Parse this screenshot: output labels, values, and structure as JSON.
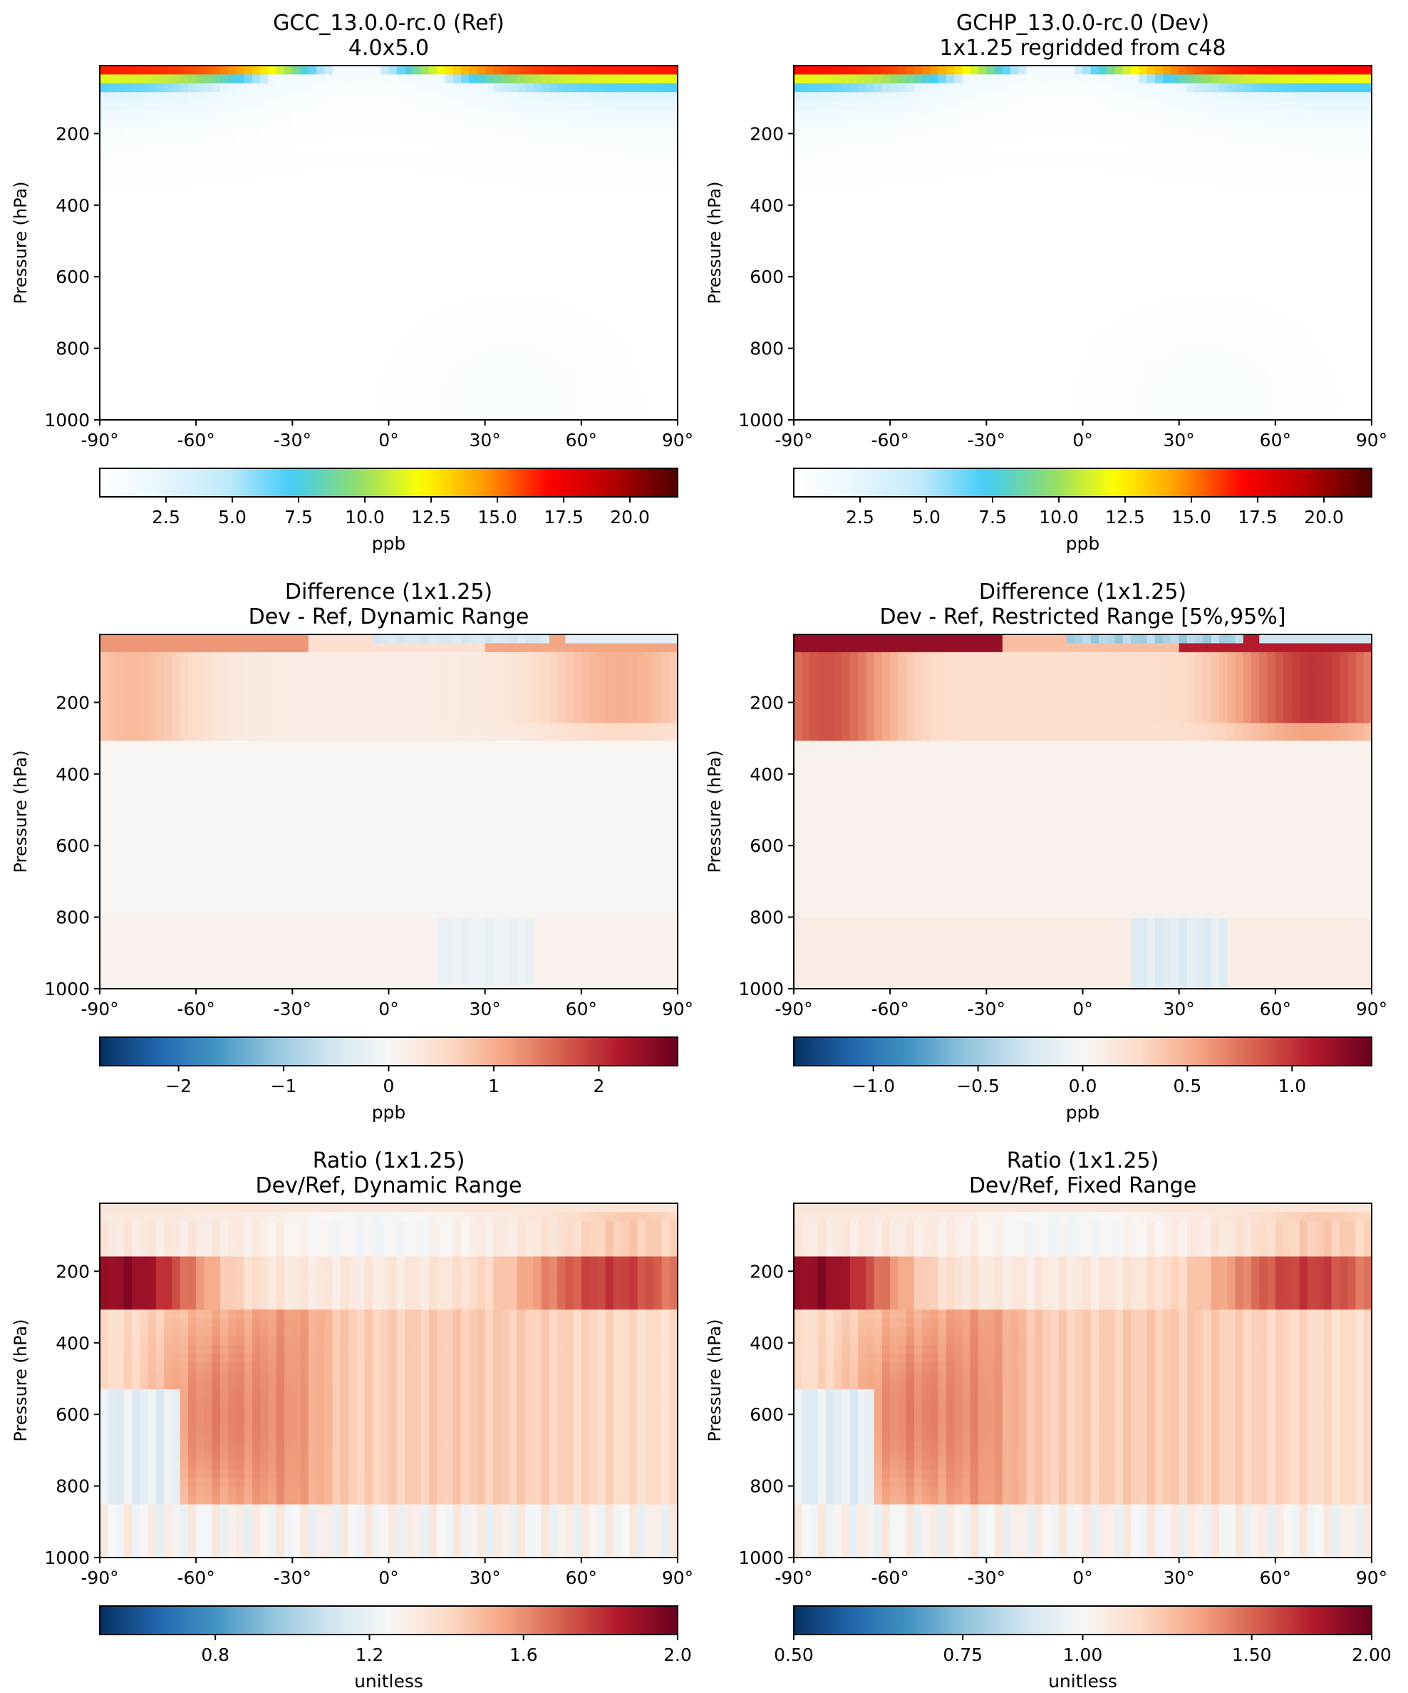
{
  "colors": {
    "sequential_stops": [
      "#ffffff",
      "#e6f6fd",
      "#bfe9fa",
      "#40ccf8",
      "#8edd6e",
      "#ffff00",
      "#ff9a00",
      "#ff0000",
      "#b40000",
      "#4d0000"
    ],
    "diverging_stops": [
      "#053061",
      "#2166ac",
      "#4393c3",
      "#92c5de",
      "#d1e5f0",
      "#f7f7f7",
      "#fddbc7",
      "#f4a582",
      "#d6604d",
      "#b2182b",
      "#67001f"
    ]
  },
  "chart_data": [
    {
      "type": "heatmap",
      "kind": "ref",
      "title": "GCC_13.0.0-rc.0 (Ref)",
      "subtitle": "4.0x5.0",
      "xlabel": "",
      "ylabel": "Pressure (hPa)",
      "xlim": [
        -90,
        90
      ],
      "ylim": [
        1000,
        10
      ],
      "y_invert": true,
      "x_ticks": [
        "-90°",
        "-60°",
        "-30°",
        "0°",
        "30°",
        "60°",
        "90°"
      ],
      "x_tick_values": [
        -90,
        -60,
        -30,
        0,
        30,
        60,
        90
      ],
      "y_ticks": [
        "200",
        "400",
        "600",
        "800",
        "1000"
      ],
      "y_tick_values": [
        200,
        400,
        600,
        800,
        1000
      ],
      "colorbar": {
        "label": "ppb",
        "cmap": "sequential",
        "range": [
          0,
          21.8
        ],
        "ticks": [
          "2.5",
          "5.0",
          "7.5",
          "10.0",
          "12.5",
          "15.0",
          "17.5",
          "20.0"
        ],
        "tick_values": [
          2.5,
          5.0,
          7.5,
          10.0,
          12.5,
          15.0,
          17.5,
          20.0
        ]
      }
    },
    {
      "type": "heatmap",
      "kind": "dev",
      "title": "GCHP_13.0.0-rc.0 (Dev)",
      "subtitle": "1x1.25 regridded from c48",
      "xlabel": "",
      "ylabel": "Pressure (hPa)",
      "xlim": [
        -90,
        90
      ],
      "ylim": [
        1000,
        10
      ],
      "y_invert": true,
      "x_ticks": [
        "-90°",
        "-60°",
        "-30°",
        "0°",
        "30°",
        "60°",
        "90°"
      ],
      "x_tick_values": [
        -90,
        -60,
        -30,
        0,
        30,
        60,
        90
      ],
      "y_ticks": [
        "200",
        "400",
        "600",
        "800",
        "1000"
      ],
      "y_tick_values": [
        200,
        400,
        600,
        800,
        1000
      ],
      "colorbar": {
        "label": "ppb",
        "cmap": "sequential",
        "range": [
          0,
          21.8
        ],
        "ticks": [
          "2.5",
          "5.0",
          "7.5",
          "10.0",
          "12.5",
          "15.0",
          "17.5",
          "20.0"
        ],
        "tick_values": [
          2.5,
          5.0,
          7.5,
          10.0,
          12.5,
          15.0,
          17.5,
          20.0
        ]
      }
    },
    {
      "type": "heatmap",
      "kind": "diff_dynamic",
      "title": "Difference (1x1.25)",
      "subtitle": "Dev - Ref, Dynamic Range",
      "xlabel": "",
      "ylabel": "Pressure (hPa)",
      "xlim": [
        -90,
        90
      ],
      "ylim": [
        1000,
        10
      ],
      "y_invert": true,
      "x_ticks": [
        "-90°",
        "-60°",
        "-30°",
        "0°",
        "30°",
        "60°",
        "90°"
      ],
      "x_tick_values": [
        -90,
        -60,
        -30,
        0,
        30,
        60,
        90
      ],
      "y_ticks": [
        "200",
        "400",
        "600",
        "800",
        "1000"
      ],
      "y_tick_values": [
        200,
        400,
        600,
        800,
        1000
      ],
      "colorbar": {
        "label": "ppb",
        "cmap": "diverging",
        "range": [
          -2.75,
          2.75
        ],
        "ticks": [
          "−2",
          "−1",
          "0",
          "1",
          "2"
        ],
        "tick_values": [
          -2,
          -1,
          0,
          1,
          2
        ]
      }
    },
    {
      "type": "heatmap",
      "kind": "diff_restricted",
      "title": "Difference (1x1.25)",
      "subtitle": "Dev - Ref, Restricted Range [5%,95%]",
      "xlabel": "",
      "ylabel": "Pressure (hPa)",
      "xlim": [
        -90,
        90
      ],
      "ylim": [
        1000,
        10
      ],
      "y_invert": true,
      "x_ticks": [
        "-90°",
        "-60°",
        "-30°",
        "0°",
        "30°",
        "60°",
        "90°"
      ],
      "x_tick_values": [
        -90,
        -60,
        -30,
        0,
        30,
        60,
        90
      ],
      "y_ticks": [
        "200",
        "400",
        "600",
        "800",
        "1000"
      ],
      "y_tick_values": [
        200,
        400,
        600,
        800,
        1000
      ],
      "colorbar": {
        "label": "ppb",
        "cmap": "diverging",
        "range": [
          -1.38,
          1.38
        ],
        "ticks": [
          "−1.0",
          "−0.5",
          "0.0",
          "0.5",
          "1.0"
        ],
        "tick_values": [
          -1.0,
          -0.5,
          0.0,
          0.5,
          1.0
        ]
      }
    },
    {
      "type": "heatmap",
      "kind": "ratio_dynamic",
      "title": "Ratio (1x1.25)",
      "subtitle": "Dev/Ref, Dynamic Range",
      "xlabel": "",
      "ylabel": "Pressure (hPa)",
      "xlim": [
        -90,
        90
      ],
      "ylim": [
        1000,
        10
      ],
      "y_invert": true,
      "x_ticks": [
        "-90°",
        "-60°",
        "-30°",
        "0°",
        "30°",
        "60°",
        "90°"
      ],
      "x_tick_values": [
        -90,
        -60,
        -30,
        0,
        30,
        60,
        90
      ],
      "y_ticks": [
        "200",
        "400",
        "600",
        "800",
        "1000"
      ],
      "y_tick_values": [
        200,
        400,
        600,
        800,
        1000
      ],
      "colorbar": {
        "label": "unitless",
        "cmap": "diverging",
        "range": [
          0.5,
          2.0
        ],
        "ticks": [
          "0.8",
          "1.2",
          "1.6",
          "2.0"
        ],
        "tick_values": [
          0.8,
          1.2,
          1.6,
          2.0
        ]
      }
    },
    {
      "type": "heatmap",
      "kind": "ratio_fixed",
      "title": "Ratio (1x1.25)",
      "subtitle": "Dev/Ref, Fixed Range",
      "xlabel": "",
      "ylabel": "Pressure (hPa)",
      "xlim": [
        -90,
        90
      ],
      "ylim": [
        1000,
        10
      ],
      "y_invert": true,
      "x_ticks": [
        "-90°",
        "-60°",
        "-30°",
        "0°",
        "30°",
        "60°",
        "90°"
      ],
      "x_tick_values": [
        -90,
        -60,
        -30,
        0,
        30,
        60,
        90
      ],
      "y_ticks": [
        "200",
        "400",
        "600",
        "800",
        "1000"
      ],
      "y_tick_values": [
        200,
        400,
        600,
        800,
        1000
      ],
      "colorbar": {
        "label": "unitless",
        "cmap": "diverging",
        "range": [
          0.5,
          2.0
        ],
        "scale": "log",
        "ticks": [
          "0.50",
          "0.75",
          "1.00",
          "1.50",
          "2.00"
        ],
        "tick_values": [
          0.5,
          0.75,
          1.0,
          1.5,
          2.0
        ]
      }
    }
  ]
}
